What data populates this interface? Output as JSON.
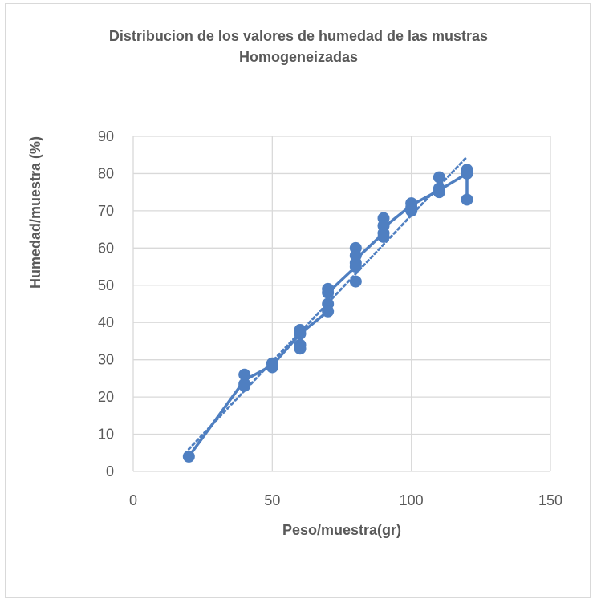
{
  "chart_data": {
    "type": "scatter",
    "title": [
      "Distribucion de los valores de humedad de las mustras",
      "Homogeneizadas"
    ],
    "xlabel": "Peso/muestra(gr)",
    "ylabel": "Humedad/muestra (%)",
    "xlim": [
      0,
      150
    ],
    "ylim": [
      0,
      90
    ],
    "xticks": [
      0,
      50,
      100,
      150
    ],
    "yticks": [
      0,
      10,
      20,
      30,
      40,
      50,
      60,
      70,
      80,
      90
    ],
    "grid": true,
    "legend": "none",
    "colors": {
      "series": "#4f7fc1",
      "grid": "#d9d9d9",
      "text": "#595959"
    },
    "series": [
      {
        "points": [
          [
            20,
            4
          ],
          [
            40,
            26
          ],
          [
            40,
            23.5
          ],
          [
            40,
            23
          ],
          [
            50,
            29
          ],
          [
            50,
            28
          ],
          [
            60,
            38
          ],
          [
            60,
            37
          ],
          [
            60,
            34
          ],
          [
            60,
            33
          ],
          [
            70,
            49
          ],
          [
            70,
            48
          ],
          [
            70,
            45
          ],
          [
            70,
            43
          ],
          [
            80,
            60
          ],
          [
            80,
            58
          ],
          [
            80,
            56
          ],
          [
            80,
            55
          ],
          [
            80,
            51
          ],
          [
            90,
            68
          ],
          [
            90,
            66
          ],
          [
            90,
            64
          ],
          [
            90,
            63
          ],
          [
            100,
            72
          ],
          [
            100,
            71
          ],
          [
            100,
            70
          ],
          [
            110,
            79
          ],
          [
            110,
            76
          ],
          [
            110,
            75
          ],
          [
            120,
            81
          ],
          [
            120,
            80
          ],
          [
            120,
            73
          ]
        ],
        "line": [
          [
            20,
            4
          ],
          [
            40,
            24.5
          ],
          [
            50,
            28.5
          ],
          [
            60,
            37
          ],
          [
            70,
            43
          ],
          [
            70,
            48
          ],
          [
            80,
            55
          ],
          [
            80,
            57
          ],
          [
            90,
            64
          ],
          [
            90,
            65.5
          ],
          [
            100,
            71.5
          ],
          [
            110,
            75.5
          ],
          [
            120,
            80
          ],
          [
            120,
            73
          ]
        ],
        "trendline": {
          "type": "linear",
          "from": [
            20,
            6
          ],
          "to": [
            120,
            84.5
          ]
        }
      }
    ]
  }
}
